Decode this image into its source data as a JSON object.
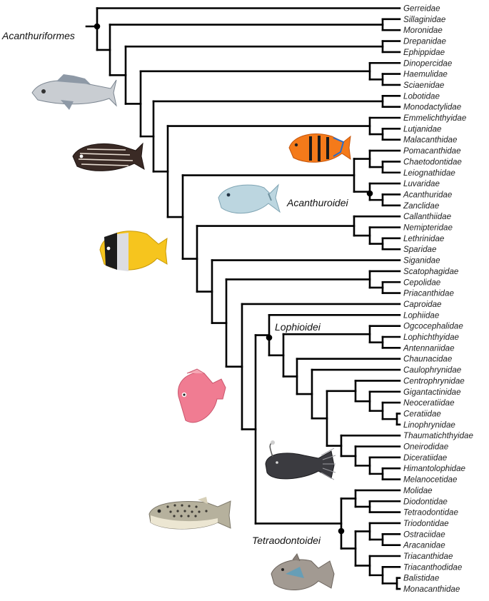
{
  "taxa": [
    "Gerreidae",
    "Sillaginidae",
    "Moronidae",
    "Drepanidae",
    "Ephippidae",
    "Dinopercidae",
    "Haemulidae",
    "Sciaenidae",
    "Lobotidae",
    "Monodactylidae",
    "Emmelichthyidae",
    "Lutjanidae",
    "Malacanthidae",
    "Pomacanthidae",
    "Chaetodontidae",
    "Leiognathidae",
    "Luvaridae",
    "Acanthuridae",
    "Zanclidae",
    "Callanthiidae",
    "Nemipteridae",
    "Lethrinidae",
    "Sparidae",
    "Siganidae",
    "Scatophagidae",
    "Cepolidae",
    "Priacanthidae",
    "Caproidae",
    "Lophiidae",
    "Ogcocephalidae",
    "Lophichthyidae",
    "Antennariidae",
    "Chaunacidae",
    "Caulophrynidae",
    "Centrophrynidae",
    "Gigantactinidae",
    "Neoceratiidae",
    "Ceratiidae",
    "Linophrynidae",
    "Thaumatichthyidae",
    "Oneirodidae",
    "Diceratiidae",
    "Himantolophidae",
    "Melanocetidae",
    "Molidae",
    "Diodontidae",
    "Tetraodontidae",
    "Triodontidae",
    "Ostraciidae",
    "Aracanidae",
    "Triacanthidae",
    "Triacanthodidae",
    "Balistidae",
    "Monacanthidae"
  ],
  "clades": {
    "acanthuriformes": "Acanthuriformes",
    "acanthuroidei": "Acanthuroidei",
    "lophioidei": "Lophioidei",
    "tetraodontoidei": "Tetraodontoidei"
  },
  "fish_illustrations": [
    {
      "name": "grunt-fish-illustration",
      "body": "#c9cdd2",
      "fin": "#8e99a6"
    },
    {
      "name": "striped-sweetlips-illustration",
      "body": "#3a2a25",
      "fin": "#5a3e35"
    },
    {
      "name": "flame-angelfish-illustration",
      "body": "#f47a1a",
      "fin": "#e9a13a"
    },
    {
      "name": "surgeonfish-illustration",
      "body": "#bcd6e0",
      "fin": "#9dc0cf"
    },
    {
      "name": "butterflyfish-illustration",
      "body": "#f6c51e",
      "fin": "#f2a900"
    },
    {
      "name": "boarfish-illustration",
      "body": "#f07c92",
      "fin": "#f5a7b4"
    },
    {
      "name": "anglerfish-illustration",
      "body": "#3b3b40",
      "fin": "#8b8b90"
    },
    {
      "name": "pufferfish-illustration",
      "body": "#b6b19d",
      "fin": "#d7d0b9"
    },
    {
      "name": "triggerfish-illustration",
      "body": "#a29a92",
      "fin": "#8a8079"
    }
  ]
}
